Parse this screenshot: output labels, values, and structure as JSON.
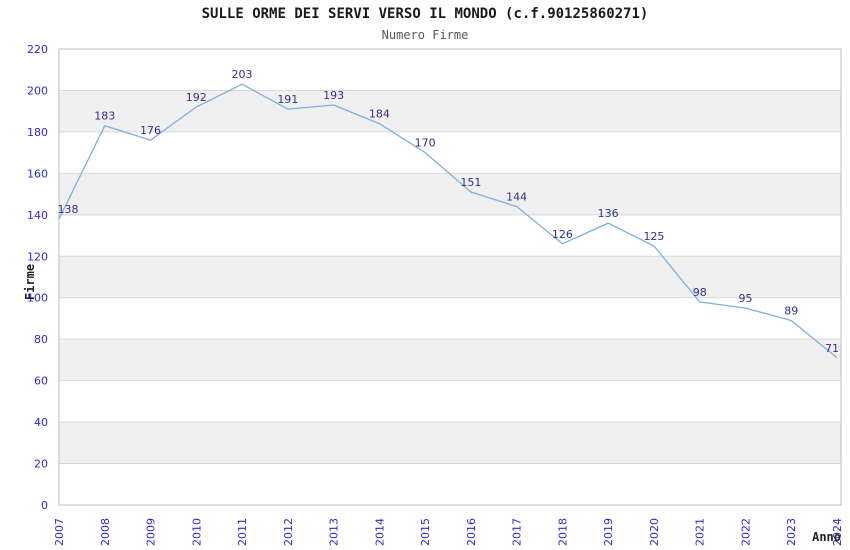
{
  "title": "SULLE ORME DEI SERVI VERSO IL MONDO (c.f.90125860271)",
  "subtitle": "Numero Firme",
  "colors": {
    "title": "#1a1a1a",
    "subtitle": "#595959",
    "tick_label": "#2b2bd4",
    "point_label": "#31318f",
    "line": "#7dafe2",
    "band": "#f0f0f0",
    "grid": "#d9d9d9",
    "border": "#bdbdbd",
    "axis_title": "#222222"
  },
  "chart_data": {
    "type": "line",
    "title": "SULLE ORME DEI SERVI VERSO IL MONDO (c.f.90125860271)",
    "subtitle": "Numero Firme",
    "xlabel": "Anno",
    "ylabel": "Firme",
    "x": [
      2007,
      2008,
      2009,
      2010,
      2011,
      2012,
      2013,
      2014,
      2015,
      2016,
      2017,
      2018,
      2019,
      2020,
      2021,
      2022,
      2023,
      2024
    ],
    "values": [
      138,
      183,
      176,
      192,
      203,
      191,
      193,
      184,
      170,
      151,
      144,
      126,
      136,
      125,
      98,
      95,
      89,
      71
    ],
    "ylim": [
      0,
      220
    ],
    "ytick_step": 20,
    "grid": true,
    "bands": "alternating-horizontal",
    "legend": "none",
    "point_labels": true,
    "x_tick_rotation": -90
  }
}
